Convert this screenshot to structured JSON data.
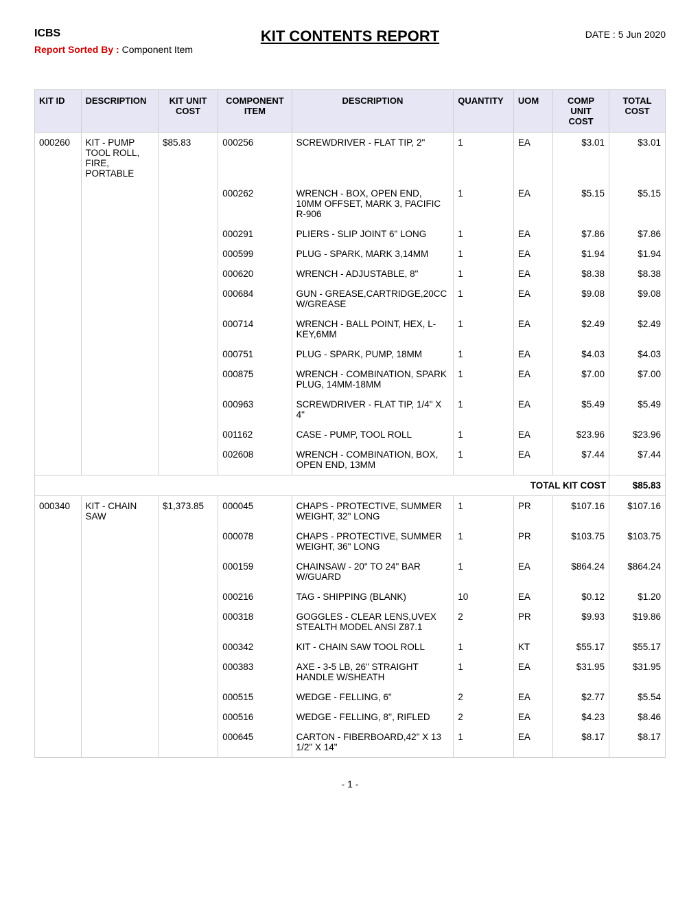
{
  "header": {
    "system": "ICBS",
    "title": "KIT CONTENTS REPORT",
    "date_label": "DATE :",
    "date": "5 Jun 2020",
    "sorted_label": "Report Sorted By :",
    "sorted_value": " Component Item"
  },
  "columns": {
    "kit_id": "KIT ID",
    "kit_desc": "DESCRIPTION",
    "kit_cost": "KIT UNIT COST",
    "comp_item": "COMPONENT ITEM",
    "comp_desc": "DESCRIPTION",
    "qty": "QUANTITY",
    "uom": "UOM",
    "unit_cost": "COMP UNIT COST",
    "total_cost": "TOTAL COST"
  },
  "kits": [
    {
      "kit_id": "000260",
      "kit_desc": "KIT - PUMP TOOL ROLL, FIRE, PORTABLE",
      "kit_cost": "$85.83",
      "components": [
        {
          "item": "000256",
          "desc": "SCREWDRIVER - FLAT TIP, 2\"",
          "qty": "1",
          "uom": "EA",
          "unit": "$3.01",
          "total": "$3.01"
        },
        {
          "item": "000262",
          "desc": "WRENCH - BOX, OPEN END, 10MM OFFSET, MARK 3, PACIFIC R-906",
          "qty": "1",
          "uom": "EA",
          "unit": "$5.15",
          "total": "$5.15"
        },
        {
          "item": "000291",
          "desc": "PLIERS - SLIP JOINT 6\" LONG",
          "qty": "1",
          "uom": "EA",
          "unit": "$7.86",
          "total": "$7.86"
        },
        {
          "item": "000599",
          "desc": "PLUG - SPARK, MARK 3,14MM",
          "qty": "1",
          "uom": "EA",
          "unit": "$1.94",
          "total": "$1.94"
        },
        {
          "item": "000620",
          "desc": "WRENCH - ADJUSTABLE, 8\"",
          "qty": "1",
          "uom": "EA",
          "unit": "$8.38",
          "total": "$8.38"
        },
        {
          "item": "000684",
          "desc": "GUN - GREASE,CARTRIDGE,20CC W/GREASE",
          "qty": "1",
          "uom": "EA",
          "unit": "$9.08",
          "total": "$9.08"
        },
        {
          "item": "000714",
          "desc": "WRENCH - BALL POINT, HEX, L-KEY,6MM",
          "qty": "1",
          "uom": "EA",
          "unit": "$2.49",
          "total": "$2.49"
        },
        {
          "item": "000751",
          "desc": "PLUG - SPARK, PUMP, 18MM",
          "qty": "1",
          "uom": "EA",
          "unit": "$4.03",
          "total": "$4.03"
        },
        {
          "item": "000875",
          "desc": "WRENCH - COMBINATION, SPARK PLUG, 14MM-18MM",
          "qty": "1",
          "uom": "EA",
          "unit": "$7.00",
          "total": "$7.00"
        },
        {
          "item": "000963",
          "desc": "SCREWDRIVER - FLAT TIP, 1/4\" X 4\"",
          "qty": "1",
          "uom": "EA",
          "unit": "$5.49",
          "total": "$5.49"
        },
        {
          "item": "001162",
          "desc": "CASE - PUMP, TOOL ROLL",
          "qty": "1",
          "uom": "EA",
          "unit": "$23.96",
          "total": "$23.96"
        },
        {
          "item": "002608",
          "desc": "WRENCH - COMBINATION, BOX, OPEN END, 13MM",
          "qty": "1",
          "uom": "EA",
          "unit": "$7.44",
          "total": "$7.44"
        }
      ],
      "total_label": "TOTAL KIT COST",
      "total_value": "$85.83"
    },
    {
      "kit_id": "000340",
      "kit_desc": "KIT - CHAIN SAW",
      "kit_cost": "$1,373.85",
      "components": [
        {
          "item": "000045",
          "desc": "CHAPS - PROTECTIVE, SUMMER WEIGHT, 32\" LONG",
          "qty": "1",
          "uom": "PR",
          "unit": "$107.16",
          "total": "$107.16"
        },
        {
          "item": "000078",
          "desc": "CHAPS - PROTECTIVE, SUMMER WEIGHT, 36\" LONG",
          "qty": "1",
          "uom": "PR",
          "unit": "$103.75",
          "total": "$103.75"
        },
        {
          "item": "000159",
          "desc": "CHAINSAW - 20\" TO 24\" BAR W/GUARD",
          "qty": "1",
          "uom": "EA",
          "unit": "$864.24",
          "total": "$864.24"
        },
        {
          "item": "000216",
          "desc": "TAG - SHIPPING (BLANK)",
          "qty": "10",
          "uom": "EA",
          "unit": "$0.12",
          "total": "$1.20"
        },
        {
          "item": "000318",
          "desc": "GOGGLES - CLEAR LENS,UVEX STEALTH MODEL ANSI Z87.1",
          "qty": "2",
          "uom": "PR",
          "unit": "$9.93",
          "total": "$19.86"
        },
        {
          "item": "000342",
          "desc": "KIT - CHAIN SAW TOOL ROLL",
          "qty": "1",
          "uom": "KT",
          "unit": "$55.17",
          "total": "$55.17"
        },
        {
          "item": "000383",
          "desc": "AXE - 3-5 LB, 26\" STRAIGHT HANDLE W/SHEATH",
          "qty": "1",
          "uom": "EA",
          "unit": "$31.95",
          "total": "$31.95"
        },
        {
          "item": "000515",
          "desc": "WEDGE - FELLING, 6\"",
          "qty": "2",
          "uom": "EA",
          "unit": "$2.77",
          "total": "$5.54"
        },
        {
          "item": "000516",
          "desc": "WEDGE - FELLING, 8'', RIFLED",
          "qty": "2",
          "uom": "EA",
          "unit": "$4.23",
          "total": "$8.46"
        },
        {
          "item": "000645",
          "desc": "CARTON - FIBERBOARD,42\" X 13 1/2\" X 14\"",
          "qty": "1",
          "uom": "EA",
          "unit": "$8.17",
          "total": "$8.17"
        }
      ]
    }
  ],
  "footer": {
    "page": "- 1 -"
  }
}
